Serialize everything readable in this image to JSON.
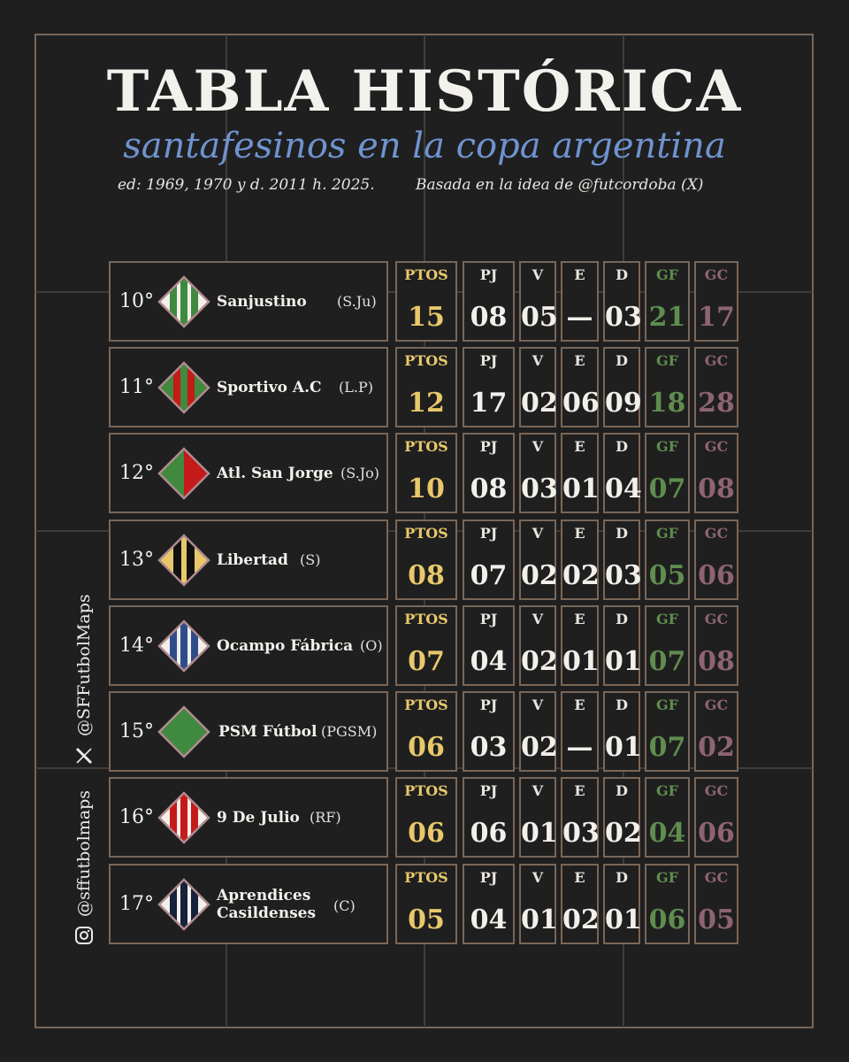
{
  "header": {
    "title": "TABLA HISTÓRICA",
    "subtitle": "santafesinos en la copa argentina",
    "note_left": "ed: 1969, 1970 y d. 2011 h. 2025.",
    "note_right": "Basada en la idea de @futcordoba (X)"
  },
  "columns": [
    "PTOS",
    "PJ",
    "V",
    "E",
    "D",
    "GF",
    "GC"
  ],
  "rows": [
    {
      "pos": "10°",
      "name": "Sanjustino",
      "abbr": "(S.Ju)",
      "pts": "15",
      "pj": "08",
      "v": "05",
      "e": "—",
      "d": "03",
      "gf": "21",
      "gc": "17"
    },
    {
      "pos": "11°",
      "name": "Sportivo A.C",
      "abbr": "(L.P)",
      "pts": "12",
      "pj": "17",
      "v": "02",
      "e": "06",
      "d": "09",
      "gf": "18",
      "gc": "28"
    },
    {
      "pos": "12°",
      "name": "Atl. San Jorge",
      "abbr": "(S.Jo)",
      "pts": "10",
      "pj": "08",
      "v": "03",
      "e": "01",
      "d": "04",
      "gf": "07",
      "gc": "08"
    },
    {
      "pos": "13°",
      "name": "Libertad",
      "abbr": "(S)",
      "pts": "08",
      "pj": "07",
      "v": "02",
      "e": "02",
      "d": "03",
      "gf": "05",
      "gc": "06"
    },
    {
      "pos": "14°",
      "name": "Ocampo Fábrica",
      "abbr": "(O)",
      "pts": "07",
      "pj": "04",
      "v": "02",
      "e": "01",
      "d": "01",
      "gf": "07",
      "gc": "08"
    },
    {
      "pos": "15°",
      "name": "PSM Fútbol",
      "abbr": "(PGSM)",
      "pts": "06",
      "pj": "03",
      "v": "02",
      "e": "—",
      "d": "01",
      "gf": "07",
      "gc": "02"
    },
    {
      "pos": "16°",
      "name": "9 De Julio",
      "abbr": "(RF)",
      "pts": "06",
      "pj": "06",
      "v": "01",
      "e": "03",
      "d": "02",
      "gf": "04",
      "gc": "06"
    },
    {
      "pos": "17°",
      "name_line1": "Aprendices",
      "name_line2": "Casildenses",
      "abbr": "(C)",
      "pts": "05",
      "pj": "04",
      "v": "01",
      "e": "02",
      "d": "01",
      "gf": "06",
      "gc": "05"
    }
  ],
  "social": {
    "x_handle": "@SFFutbolMaps",
    "ig_handle": "@sffutbolmaps",
    "x_icon": "x-logo-icon",
    "ig_icon": "instagram-icon"
  },
  "colors": {
    "background": "#1f1f20",
    "frame": "#7a6656",
    "pts": "#e8c86a",
    "gf": "#5f8d4e",
    "gc": "#8e6470",
    "subtitle": "#6f93cf"
  }
}
